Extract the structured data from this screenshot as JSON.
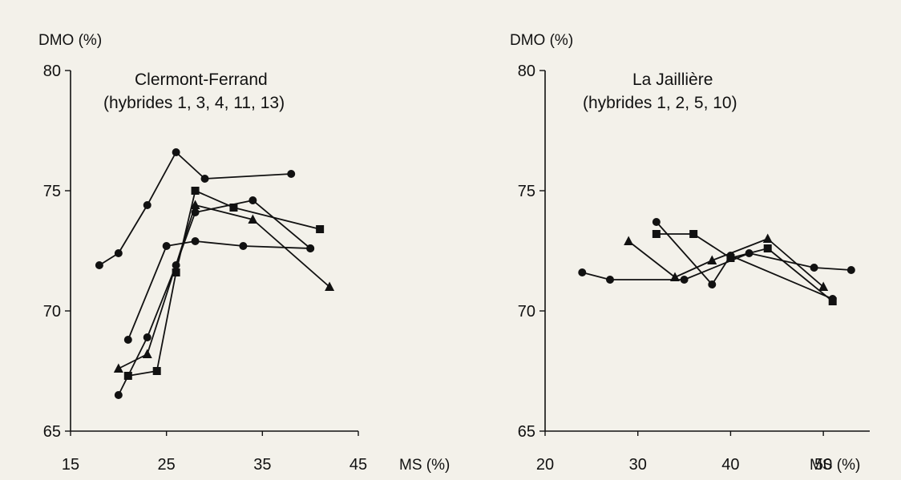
{
  "colors": {
    "ink": "#111111",
    "paper": "#f3f1ea"
  },
  "chart_data": [
    {
      "type": "line",
      "title": "Clermont-Ferrand",
      "subtitle": "(hybrides 1, 3, 4, 11, 13)",
      "xlabel": "MS (%)",
      "ylabel": "DMO (%)",
      "xlim": [
        15,
        45
      ],
      "ylim": [
        65,
        80
      ],
      "xticks": [
        15,
        25,
        35,
        45
      ],
      "yticks": [
        65,
        70,
        75,
        80
      ],
      "grid": false,
      "series": [
        {
          "marker": "circle",
          "x": [
            18,
            20,
            23,
            26,
            29,
            38
          ],
          "y": [
            71.9,
            72.4,
            74.4,
            76.6,
            75.5,
            75.7
          ]
        },
        {
          "marker": "circle",
          "x": [
            21,
            25,
            28,
            33,
            40
          ],
          "y": [
            68.8,
            72.7,
            72.9,
            72.7,
            72.6
          ]
        },
        {
          "marker": "triangle",
          "x": [
            20,
            23,
            28,
            34,
            42
          ],
          "y": [
            67.6,
            68.2,
            74.4,
            73.8,
            71.0
          ]
        },
        {
          "marker": "square",
          "x": [
            21,
            24,
            26,
            28,
            32,
            41
          ],
          "y": [
            67.3,
            67.5,
            71.6,
            75.0,
            74.3,
            73.4
          ]
        },
        {
          "marker": "circle",
          "x": [
            20,
            23,
            26,
            28,
            34,
            40
          ],
          "y": [
            66.5,
            68.9,
            71.9,
            74.1,
            74.6,
            72.6
          ]
        }
      ]
    },
    {
      "type": "line",
      "title": "La Jaillière",
      "subtitle": "(hybrides 1, 2, 5, 10)",
      "xlabel": "MS (%)",
      "ylabel": "DMO (%)",
      "xlim": [
        20,
        55
      ],
      "ylim": [
        65,
        80
      ],
      "xticks": [
        20,
        30,
        40,
        50
      ],
      "yticks": [
        65,
        70,
        75,
        80
      ],
      "grid": false,
      "series": [
        {
          "marker": "circle",
          "x": [
            24,
            27,
            35,
            42,
            49,
            53
          ],
          "y": [
            71.6,
            71.3,
            71.3,
            72.4,
            71.8,
            71.7
          ]
        },
        {
          "marker": "circle",
          "x": [
            32,
            38,
            40,
            51
          ],
          "y": [
            73.7,
            71.1,
            72.3,
            70.5
          ]
        },
        {
          "marker": "triangle",
          "x": [
            29,
            34,
            38,
            44,
            50
          ],
          "y": [
            72.9,
            71.4,
            72.1,
            73.0,
            71.0
          ]
        },
        {
          "marker": "square",
          "x": [
            32,
            36,
            40,
            44,
            51
          ],
          "y": [
            73.2,
            73.2,
            72.2,
            72.6,
            70.4
          ]
        }
      ]
    }
  ]
}
